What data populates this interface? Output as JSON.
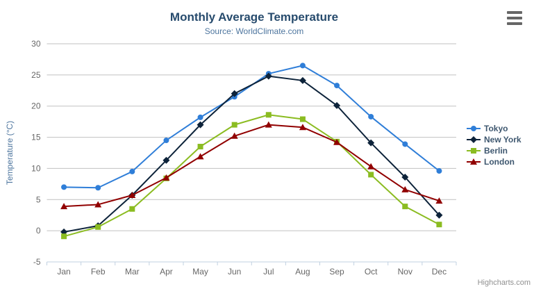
{
  "header": {
    "title": "Monthly Average Temperature",
    "subtitle": "Source: WorldClimate.com"
  },
  "credits": {
    "label": "Highcharts.com"
  },
  "colors": {
    "title": "#274b6d",
    "subtitle": "#4d759e",
    "axis_title": "#4d759e",
    "axis_labels": "#666666",
    "grid": "#c0c0c0",
    "axis_line": "#c0d0e0",
    "legend_text": "#3e576f",
    "credits": "#909090",
    "export_icon": "#666666"
  },
  "chart_data": {
    "type": "line",
    "title": "Monthly Average Temperature",
    "subtitle": "Source: WorldClimate.com",
    "xlabel": "",
    "ylabel": "Temperature (°C)",
    "categories": [
      "Jan",
      "Feb",
      "Mar",
      "Apr",
      "May",
      "Jun",
      "Jul",
      "Aug",
      "Sep",
      "Oct",
      "Nov",
      "Dec"
    ],
    "ylim": [
      -5,
      30
    ],
    "ytick_step": 5,
    "yticks": [
      -5,
      0,
      5,
      10,
      15,
      20,
      25,
      30
    ],
    "grid": true,
    "legend_position": "right-middle",
    "series": [
      {
        "name": "Tokyo",
        "color": "#2f7ed8",
        "marker": "circle",
        "values": [
          7.0,
          6.9,
          9.5,
          14.5,
          18.2,
          21.5,
          25.2,
          26.5,
          23.3,
          18.3,
          13.9,
          9.6
        ]
      },
      {
        "name": "New York",
        "color": "#0d233a",
        "marker": "diamond",
        "values": [
          -0.2,
          0.8,
          5.7,
          11.3,
          17.0,
          22.0,
          24.8,
          24.1,
          20.1,
          14.1,
          8.6,
          2.5
        ]
      },
      {
        "name": "Berlin",
        "color": "#8bbc21",
        "marker": "square",
        "values": [
          -0.9,
          0.6,
          3.5,
          8.4,
          13.5,
          17.0,
          18.6,
          17.9,
          14.3,
          9.0,
          3.9,
          1.0
        ]
      },
      {
        "name": "London",
        "color": "#910000",
        "marker": "triangle",
        "values": [
          3.9,
          4.2,
          5.7,
          8.5,
          11.9,
          15.2,
          17.0,
          16.6,
          14.2,
          10.3,
          6.6,
          4.8
        ]
      }
    ]
  }
}
